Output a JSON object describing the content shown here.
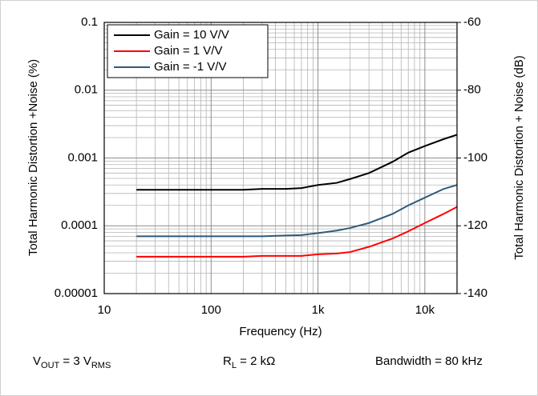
{
  "chart_data": {
    "type": "line",
    "x_label": "Frequency (Hz)",
    "y_label": "Total Harmonic Distortion +Noise (%)",
    "y2_label": "Total Harmonic Distortion + Noise (dB)",
    "log_x": true,
    "log_y": true,
    "grid": true,
    "minor_grid": true,
    "legend": "upper left",
    "xlim": [
      10,
      20000
    ],
    "xticks": [
      10,
      100,
      {
        "value": 1000,
        "label": "1k"
      },
      {
        "value": 10000,
        "label": "10k"
      }
    ],
    "ylim": [
      1e-05,
      0.1
    ],
    "yticks": [
      {
        "value": 1e-05,
        "label": "0.00001"
      },
      0.0001,
      0.001,
      0.01,
      0.1
    ],
    "y2lim": [
      -140,
      -60
    ],
    "y2ticks": [
      -140,
      -120,
      -100,
      -80,
      -60
    ],
    "x": [
      20,
      30,
      50,
      100,
      200,
      300,
      500,
      700,
      1000,
      1500,
      2000,
      3000,
      5000,
      7000,
      10000,
      15000,
      20000
    ],
    "series": [
      {
        "name": "Gain = 10 V/V",
        "color": "#000000",
        "values": [
          0.00034,
          0.00034,
          0.00034,
          0.00034,
          0.00034,
          0.00035,
          0.00035,
          0.00036,
          0.0004,
          0.00043,
          0.00049,
          0.0006,
          0.00088,
          0.0012,
          0.0015,
          0.0019,
          0.0022
        ]
      },
      {
        "name": "Gain = 1 V/V",
        "color": "#ff0000",
        "values": [
          3.5e-05,
          3.5e-05,
          3.5e-05,
          3.5e-05,
          3.5e-05,
          3.6e-05,
          3.6e-05,
          3.6e-05,
          3.8e-05,
          3.9e-05,
          4.1e-05,
          4.9e-05,
          6.5e-05,
          8.3e-05,
          0.00011,
          0.00015,
          0.00019
        ]
      },
      {
        "name": "Gain = -1 V/V",
        "color": "#2e5a7a",
        "values": [
          7e-05,
          7e-05,
          7e-05,
          7e-05,
          7e-05,
          7e-05,
          7.2e-05,
          7.3e-05,
          7.8e-05,
          8.5e-05,
          9.3e-05,
          0.00011,
          0.00015,
          0.0002,
          0.00026,
          0.00035,
          0.0004
        ]
      }
    ],
    "annotations": [
      [
        {
          "text": "V"
        },
        {
          "sub": "OUT"
        },
        {
          "text": " = 3 V"
        },
        {
          "sub": "RMS"
        }
      ],
      [
        {
          "text": "R"
        },
        {
          "sub": "L"
        },
        {
          "text": " = 2 kΩ"
        }
      ],
      [
        {
          "text": "Bandwidth = 80 kHz"
        }
      ]
    ]
  }
}
